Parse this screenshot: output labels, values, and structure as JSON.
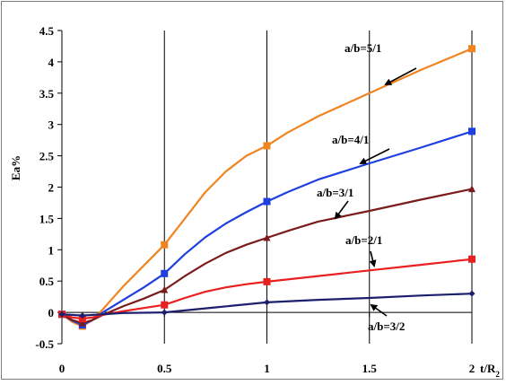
{
  "chart_data": {
    "type": "line",
    "xlabel": "t/R",
    "xlabel_sub": "2",
    "ylabel": "Ea%",
    "xlim": [
      0,
      2
    ],
    "ylim": [
      -0.5,
      4.5
    ],
    "xticks": [
      {
        "value": 0,
        "label": "0"
      },
      {
        "value": 0.5,
        "label": "0.5"
      },
      {
        "value": 1,
        "label": "1"
      },
      {
        "value": 1.5,
        "label": "1.5"
      },
      {
        "value": 2,
        "label": "2"
      }
    ],
    "yticks": [
      {
        "value": -0.5,
        "label": "-0.5"
      },
      {
        "value": 0,
        "label": "0"
      },
      {
        "value": 0.5,
        "label": "0.5"
      },
      {
        "value": 1,
        "label": "1"
      },
      {
        "value": 1.5,
        "label": "1.5"
      },
      {
        "value": 2,
        "label": "2"
      },
      {
        "value": 2.5,
        "label": "2.5"
      },
      {
        "value": 3,
        "label": "3"
      },
      {
        "value": 3.5,
        "label": "3.5"
      },
      {
        "value": 4,
        "label": "4"
      },
      {
        "value": 4.5,
        "label": "4.5"
      }
    ],
    "grid": "vertical",
    "series": [
      {
        "name": "a/b=5/1",
        "color": "#f08421",
        "marker": "square",
        "x": [
          0,
          0.1,
          0.5,
          1,
          2
        ],
        "y": [
          -0.03,
          -0.22,
          1.08,
          2.66,
          4.21
        ],
        "curve": [
          [
            0,
            -0.03
          ],
          [
            0.05,
            -0.15
          ],
          [
            0.1,
            -0.22
          ],
          [
            0.15,
            -0.12
          ],
          [
            0.2,
            0.05
          ],
          [
            0.3,
            0.42
          ],
          [
            0.4,
            0.75
          ],
          [
            0.5,
            1.08
          ],
          [
            0.6,
            1.5
          ],
          [
            0.7,
            1.92
          ],
          [
            0.8,
            2.25
          ],
          [
            0.9,
            2.5
          ],
          [
            1,
            2.66
          ],
          [
            1.1,
            2.87
          ],
          [
            1.25,
            3.13
          ],
          [
            1.5,
            3.5
          ],
          [
            1.75,
            3.87
          ],
          [
            2,
            4.21
          ]
        ]
      },
      {
        "name": "a/b=4/1",
        "color": "#1f3fde",
        "marker": "square",
        "x": [
          0,
          0.1,
          0.5,
          1,
          2
        ],
        "y": [
          -0.03,
          -0.2,
          0.62,
          1.77,
          2.89
        ],
        "curve": [
          [
            0,
            -0.03
          ],
          [
            0.05,
            -0.13
          ],
          [
            0.1,
            -0.2
          ],
          [
            0.15,
            -0.12
          ],
          [
            0.2,
            0.0
          ],
          [
            0.3,
            0.2
          ],
          [
            0.4,
            0.4
          ],
          [
            0.5,
            0.62
          ],
          [
            0.6,
            0.93
          ],
          [
            0.7,
            1.2
          ],
          [
            0.8,
            1.42
          ],
          [
            0.9,
            1.6
          ],
          [
            1,
            1.77
          ],
          [
            1.1,
            1.92
          ],
          [
            1.25,
            2.12
          ],
          [
            1.5,
            2.38
          ],
          [
            1.75,
            2.63
          ],
          [
            2,
            2.89
          ]
        ]
      },
      {
        "name": "a/b=3/1",
        "color": "#7b1c1c",
        "marker": "triangle",
        "x": [
          0,
          0.1,
          0.5,
          1,
          2
        ],
        "y": [
          -0.03,
          -0.17,
          0.36,
          1.19,
          1.97
        ],
        "curve": [
          [
            0,
            -0.03
          ],
          [
            0.05,
            -0.12
          ],
          [
            0.1,
            -0.17
          ],
          [
            0.15,
            -0.12
          ],
          [
            0.2,
            -0.04
          ],
          [
            0.3,
            0.1
          ],
          [
            0.4,
            0.22
          ],
          [
            0.5,
            0.36
          ],
          [
            0.6,
            0.58
          ],
          [
            0.7,
            0.78
          ],
          [
            0.8,
            0.95
          ],
          [
            0.9,
            1.08
          ],
          [
            1,
            1.19
          ],
          [
            1.1,
            1.3
          ],
          [
            1.25,
            1.45
          ],
          [
            1.5,
            1.62
          ],
          [
            1.75,
            1.8
          ],
          [
            2,
            1.97
          ]
        ]
      },
      {
        "name": "a/b=2/1",
        "color": "#e8201f",
        "marker": "square",
        "x": [
          0,
          0.1,
          0.5,
          1,
          2
        ],
        "y": [
          -0.03,
          -0.1,
          0.12,
          0.49,
          0.85
        ],
        "curve": [
          [
            0,
            -0.03
          ],
          [
            0.05,
            -0.08
          ],
          [
            0.1,
            -0.1
          ],
          [
            0.15,
            -0.08
          ],
          [
            0.2,
            -0.04
          ],
          [
            0.3,
            0.02
          ],
          [
            0.4,
            0.07
          ],
          [
            0.5,
            0.12
          ],
          [
            0.6,
            0.23
          ],
          [
            0.7,
            0.33
          ],
          [
            0.8,
            0.4
          ],
          [
            0.9,
            0.45
          ],
          [
            1,
            0.49
          ],
          [
            1.25,
            0.58
          ],
          [
            1.5,
            0.67
          ],
          [
            1.75,
            0.76
          ],
          [
            2,
            0.85
          ]
        ]
      },
      {
        "name": "a/b=3/2",
        "color": "#1c1f6e",
        "marker": "diamond",
        "x": [
          0,
          0.1,
          0.5,
          1,
          2
        ],
        "y": [
          -0.03,
          -0.05,
          0.0,
          0.16,
          0.3
        ],
        "curve": [
          [
            0,
            -0.03
          ],
          [
            0.1,
            -0.05
          ],
          [
            0.2,
            -0.03
          ],
          [
            0.3,
            -0.01
          ],
          [
            0.5,
            0.0
          ],
          [
            0.75,
            0.08
          ],
          [
            1,
            0.16
          ],
          [
            1.25,
            0.2
          ],
          [
            1.5,
            0.23
          ],
          [
            1.75,
            0.27
          ],
          [
            2,
            0.3
          ]
        ]
      }
    ],
    "annotations": [
      {
        "text": "a/b=5/1",
        "series": 0
      },
      {
        "text": "a/b=4/1",
        "series": 1
      },
      {
        "text": "a/b=3/1",
        "series": 2
      },
      {
        "text": "a/b=2/1",
        "series": 3
      },
      {
        "text": "a/b=3/2",
        "series": 4
      }
    ]
  }
}
